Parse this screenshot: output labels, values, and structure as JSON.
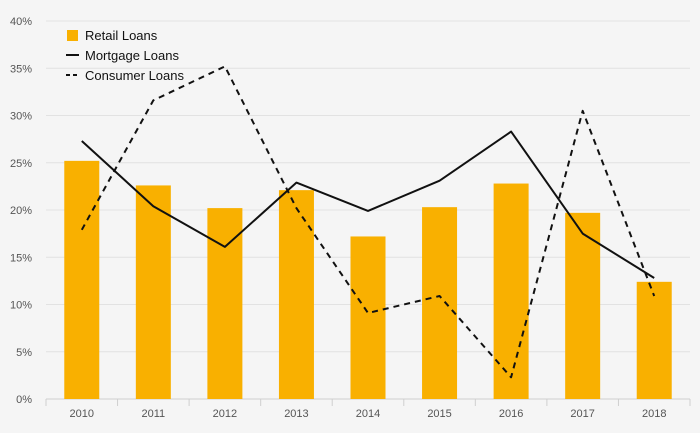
{
  "chart_data": {
    "type": "bar",
    "categories": [
      "2010",
      "2011",
      "2012",
      "2013",
      "2014",
      "2015",
      "2016",
      "2017",
      "2018"
    ],
    "series": [
      {
        "name": "Retail Loans",
        "type": "bar",
        "color": "#F9B000",
        "values": [
          25.2,
          22.6,
          20.2,
          22.1,
          17.2,
          20.3,
          22.8,
          19.7,
          12.4
        ]
      },
      {
        "name": "Mortgage Loans",
        "type": "line",
        "style": "solid",
        "color": "#111111",
        "values": [
          27.3,
          20.4,
          16.1,
          22.9,
          19.9,
          23.1,
          28.3,
          17.5,
          12.8
        ]
      },
      {
        "name": "Consumer Loans",
        "type": "line",
        "style": "dashed",
        "color": "#111111",
        "values": [
          17.9,
          31.6,
          35.2,
          20.2,
          9.1,
          10.9,
          2.3,
          30.5,
          10.9
        ]
      }
    ],
    "ylim": [
      0,
      40
    ],
    "yticks": [
      "0%",
      "5%",
      "10%",
      "15%",
      "20%",
      "25%",
      "30%",
      "35%",
      "40%"
    ],
    "y_unit": "%",
    "grid": "horizontal",
    "legend": "top-left",
    "xlabel": "",
    "ylabel": "",
    "title": ""
  }
}
